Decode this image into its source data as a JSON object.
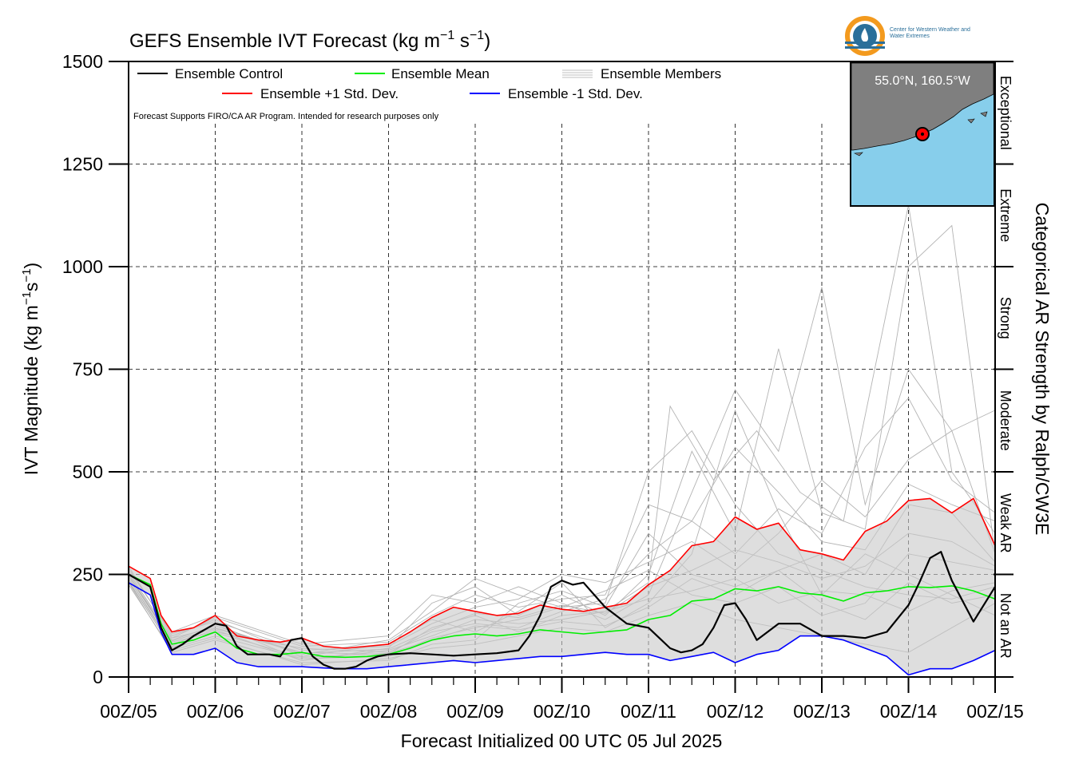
{
  "chart_data": {
    "type": "line",
    "title": "GEFS Ensemble IVT Forecast (kg m⁻¹ s⁻¹)",
    "title_parts": {
      "base": "GEFS Ensemble IVT Forecast (kg m",
      "exp1": "−1",
      "mid": " s",
      "exp2": "−1",
      "end": ")"
    },
    "xlabel": "Forecast Initialized 00 UTC 05 Jul 2025",
    "ylabel": "IVT Magnitude (kg m⁻¹s⁻¹)",
    "ylabel_parts": {
      "base": "IVT Magnitude (kg m",
      "exp1": "−1",
      "mid": "s",
      "exp2": "−1",
      "end": ")"
    },
    "right_label": "Categorical AR Strength by Ralph/CW3E",
    "note": "Forecast Supports FIRO/CA AR Program. Intended for research purposes only",
    "location_label": "55.0°N, 160.5°W",
    "logo_text": "Center for Western Weather and Water Extremes",
    "xlim": [
      0,
      240
    ],
    "ylim": [
      0,
      1500
    ],
    "x_unit": "forecast hour",
    "x_ticks": [
      0,
      24,
      48,
      72,
      96,
      120,
      144,
      168,
      192,
      216,
      240
    ],
    "x_tick_labels": [
      "00Z/05",
      "00Z/06",
      "00Z/07",
      "00Z/08",
      "00Z/09",
      "00Z/10",
      "00Z/11",
      "00Z/12",
      "00Z/13",
      "00Z/14",
      "00Z/15"
    ],
    "y_ticks": [
      0,
      250,
      500,
      750,
      1000,
      1250,
      1500
    ],
    "y_tick_labels": [
      "0",
      "250",
      "500",
      "750",
      "1000",
      "1250",
      "1500"
    ],
    "categories_right": [
      {
        "label": "Not an AR",
        "range": [
          0,
          250
        ]
      },
      {
        "label": "Weak AR",
        "range": [
          250,
          500
        ]
      },
      {
        "label": "Moderate",
        "range": [
          500,
          750
        ]
      },
      {
        "label": "Strong",
        "range": [
          750,
          1000
        ]
      },
      {
        "label": "Extreme",
        "range": [
          1000,
          1250
        ]
      },
      {
        "label": "Exceptional",
        "range": [
          1250,
          1500
        ]
      }
    ],
    "grid": true,
    "legend_position": "top-left",
    "legend": [
      {
        "label": "Ensemble Control",
        "color": "#000000"
      },
      {
        "label": "Ensemble Mean",
        "color": "#00ee00"
      },
      {
        "label": "Ensemble Members",
        "color": "#aaaaaa"
      },
      {
        "label": "Ensemble +1 Std. Dev.",
        "color": "#ff0000"
      },
      {
        "label": "Ensemble -1 Std. Dev.",
        "color": "#0000ff"
      }
    ],
    "series": [
      {
        "name": "Ensemble Control",
        "color": "#000000",
        "x": [
          0,
          6,
          9,
          12,
          15,
          18,
          24,
          27,
          30,
          33,
          36,
          39,
          42,
          45,
          48,
          51,
          54,
          57,
          60,
          63,
          66,
          69,
          72,
          78,
          84,
          90,
          96,
          102,
          108,
          111,
          114,
          117,
          120,
          123,
          126,
          132,
          138,
          144,
          147,
          150,
          153,
          156,
          159,
          162,
          165,
          168,
          171,
          174,
          180,
          186,
          192,
          198,
          204,
          210,
          216,
          219,
          222,
          225,
          228,
          234,
          240
        ],
        "y": [
          250,
          220,
          120,
          65,
          80,
          100,
          130,
          125,
          75,
          55,
          55,
          55,
          50,
          90,
          95,
          50,
          30,
          20,
          20,
          25,
          40,
          50,
          55,
          58,
          55,
          52,
          55,
          58,
          65,
          100,
          150,
          220,
          235,
          225,
          230,
          170,
          130,
          120,
          95,
          70,
          60,
          65,
          80,
          120,
          175,
          180,
          140,
          90,
          130,
          130,
          100,
          100,
          95,
          110,
          175,
          230,
          290,
          305,
          235,
          135,
          220
        ]
      },
      {
        "name": "Ensemble Mean",
        "color": "#00ee00",
        "x": [
          0,
          6,
          9,
          12,
          18,
          24,
          30,
          36,
          42,
          48,
          54,
          60,
          66,
          72,
          78,
          84,
          90,
          96,
          102,
          108,
          114,
          120,
          126,
          132,
          138,
          144,
          150,
          156,
          162,
          168,
          174,
          180,
          186,
          192,
          198,
          204,
          210,
          216,
          222,
          228,
          234,
          240
        ],
        "y": [
          250,
          225,
          130,
          80,
          90,
          110,
          70,
          55,
          55,
          60,
          50,
          48,
          50,
          55,
          70,
          90,
          100,
          105,
          100,
          105,
          115,
          110,
          105,
          110,
          115,
          140,
          150,
          185,
          190,
          215,
          210,
          220,
          205,
          200,
          185,
          205,
          210,
          220,
          218,
          222,
          210,
          190
        ]
      },
      {
        "name": "Ensemble +1 Std. Dev.",
        "color": "#ff0000",
        "x": [
          0,
          6,
          9,
          12,
          18,
          24,
          30,
          36,
          42,
          48,
          54,
          60,
          66,
          72,
          78,
          84,
          90,
          96,
          102,
          108,
          114,
          120,
          126,
          132,
          138,
          144,
          150,
          156,
          162,
          168,
          174,
          180,
          186,
          192,
          198,
          204,
          210,
          216,
          222,
          228,
          234,
          240
        ],
        "y": [
          270,
          240,
          150,
          110,
          120,
          150,
          100,
          90,
          85,
          95,
          75,
          70,
          75,
          80,
          110,
          145,
          170,
          160,
          150,
          155,
          175,
          165,
          160,
          170,
          180,
          225,
          260,
          320,
          330,
          390,
          360,
          375,
          310,
          300,
          285,
          355,
          380,
          430,
          435,
          400,
          435,
          320
        ]
      },
      {
        "name": "Ensemble -1 Std. Dev.",
        "color": "#0000ff",
        "x": [
          0,
          6,
          9,
          12,
          18,
          24,
          30,
          36,
          42,
          48,
          54,
          60,
          66,
          72,
          78,
          84,
          90,
          96,
          102,
          108,
          114,
          120,
          126,
          132,
          138,
          144,
          150,
          156,
          162,
          168,
          174,
          180,
          186,
          192,
          198,
          204,
          210,
          216,
          222,
          228,
          234,
          240
        ],
        "y": [
          230,
          200,
          110,
          55,
          55,
          70,
          35,
          25,
          25,
          25,
          22,
          20,
          20,
          25,
          30,
          35,
          40,
          35,
          40,
          45,
          50,
          50,
          55,
          60,
          55,
          55,
          40,
          50,
          60,
          35,
          55,
          65,
          100,
          100,
          90,
          70,
          50,
          5,
          20,
          20,
          40,
          65
        ]
      }
    ],
    "members": [
      [
        0,
        255,
        12,
        95,
        24,
        120,
        48,
        60,
        72,
        55,
        84,
        120,
        96,
        150,
        108,
        110,
        120,
        150,
        132,
        160,
        144,
        230,
        150,
        660,
        162,
        480,
        174,
        600,
        186,
        450,
        198,
        380,
        216,
        1150,
        228,
        500,
        240,
        350
      ],
      [
        0,
        240,
        12,
        75,
        24,
        130,
        48,
        40,
        72,
        70,
        84,
        180,
        96,
        220,
        108,
        150,
        120,
        200,
        132,
        150,
        144,
        250,
        156,
        550,
        168,
        350,
        180,
        800,
        192,
        400,
        204,
        360,
        216,
        1000,
        228,
        1100,
        240,
        300
      ],
      [
        0,
        260,
        12,
        110,
        24,
        150,
        48,
        80,
        72,
        100,
        84,
        200,
        96,
        180,
        108,
        220,
        120,
        180,
        132,
        140,
        144,
        200,
        156,
        450,
        168,
        700,
        180,
        550,
        192,
        950,
        204,
        420,
        216,
        750,
        228,
        600,
        240,
        650
      ],
      [
        0,
        230,
        12,
        60,
        24,
        90,
        48,
        35,
        72,
        40,
        84,
        80,
        96,
        90,
        108,
        180,
        120,
        210,
        132,
        170,
        144,
        350,
        156,
        250,
        168,
        220,
        180,
        260,
        192,
        300,
        204,
        250,
        216,
        420,
        228,
        400,
        240,
        280
      ],
      [
        0,
        245,
        12,
        85,
        24,
        110,
        48,
        70,
        72,
        60,
        84,
        110,
        96,
        130,
        108,
        120,
        120,
        160,
        132,
        190,
        144,
        300,
        156,
        380,
        168,
        300,
        180,
        410,
        192,
        350,
        204,
        560,
        216,
        680,
        228,
        480,
        240,
        400
      ],
      [
        0,
        270,
        12,
        100,
        24,
        140,
        48,
        50,
        72,
        80,
        84,
        140,
        96,
        110,
        108,
        160,
        120,
        230,
        132,
        120,
        144,
        180,
        156,
        300,
        168,
        650,
        180,
        400,
        192,
        200,
        204,
        300,
        216,
        250,
        228,
        200,
        240,
        150
      ],
      [
        0,
        235,
        12,
        70,
        24,
        100,
        48,
        45,
        72,
        50,
        84,
        95,
        96,
        120,
        108,
        140,
        120,
        170,
        132,
        210,
        144,
        260,
        156,
        200,
        168,
        180,
        180,
        220,
        192,
        150,
        204,
        180,
        216,
        300,
        228,
        280,
        240,
        260
      ],
      [
        0,
        250,
        12,
        90,
        24,
        125,
        48,
        55,
        72,
        90,
        84,
        160,
        96,
        240,
        108,
        200,
        120,
        170,
        132,
        180,
        144,
        500,
        156,
        600,
        168,
        420,
        180,
        300,
        192,
        260,
        204,
        220,
        216,
        200,
        228,
        190,
        240,
        220
      ],
      [
        0,
        225,
        12,
        65,
        24,
        95,
        48,
        30,
        72,
        45,
        84,
        70,
        96,
        80,
        108,
        100,
        120,
        120,
        132,
        110,
        144,
        150,
        156,
        180,
        168,
        140,
        180,
        120,
        192,
        100,
        204,
        80,
        216,
        60,
        228,
        120,
        240,
        180
      ],
      [
        0,
        265,
        12,
        105,
        24,
        135,
        48,
        65,
        72,
        75,
        84,
        130,
        96,
        170,
        108,
        190,
        120,
        250,
        132,
        230,
        144,
        280,
        156,
        330,
        168,
        260,
        180,
        350,
        192,
        480,
        204,
        390,
        216,
        530,
        228,
        600,
        240,
        300
      ],
      [
        0,
        240,
        12,
        80,
        24,
        115,
        48,
        40,
        72,
        65,
        84,
        100,
        96,
        140,
        108,
        130,
        120,
        140,
        132,
        160,
        144,
        190,
        156,
        210,
        168,
        240,
        180,
        180,
        192,
        210,
        204,
        200,
        216,
        160,
        228,
        210,
        240,
        230
      ],
      [
        0,
        255,
        12,
        95,
        24,
        145,
        48,
        75,
        72,
        85,
        84,
        150,
        96,
        200,
        108,
        170,
        120,
        190,
        132,
        200,
        144,
        420,
        156,
        380,
        168,
        560,
        180,
        450,
        192,
        330,
        204,
        310,
        216,
        470,
        228,
        420,
        240,
        380
      ],
      [
        0,
        248,
        12,
        88,
        24,
        118,
        48,
        58,
        72,
        68,
        84,
        115,
        96,
        155,
        108,
        145,
        120,
        175,
        132,
        155,
        144,
        220,
        156,
        260,
        168,
        310,
        180,
        280,
        192,
        240,
        204,
        270,
        216,
        350,
        228,
        330,
        240,
        270
      ],
      [
        0,
        232,
        12,
        72,
        24,
        108,
        48,
        48,
        72,
        58,
        84,
        90,
        96,
        125,
        108,
        115,
        120,
        135,
        132,
        125,
        144,
        170,
        156,
        240,
        168,
        200,
        180,
        260,
        192,
        180,
        204,
        140,
        216,
        230,
        228,
        180,
        240,
        200
      ]
    ]
  }
}
